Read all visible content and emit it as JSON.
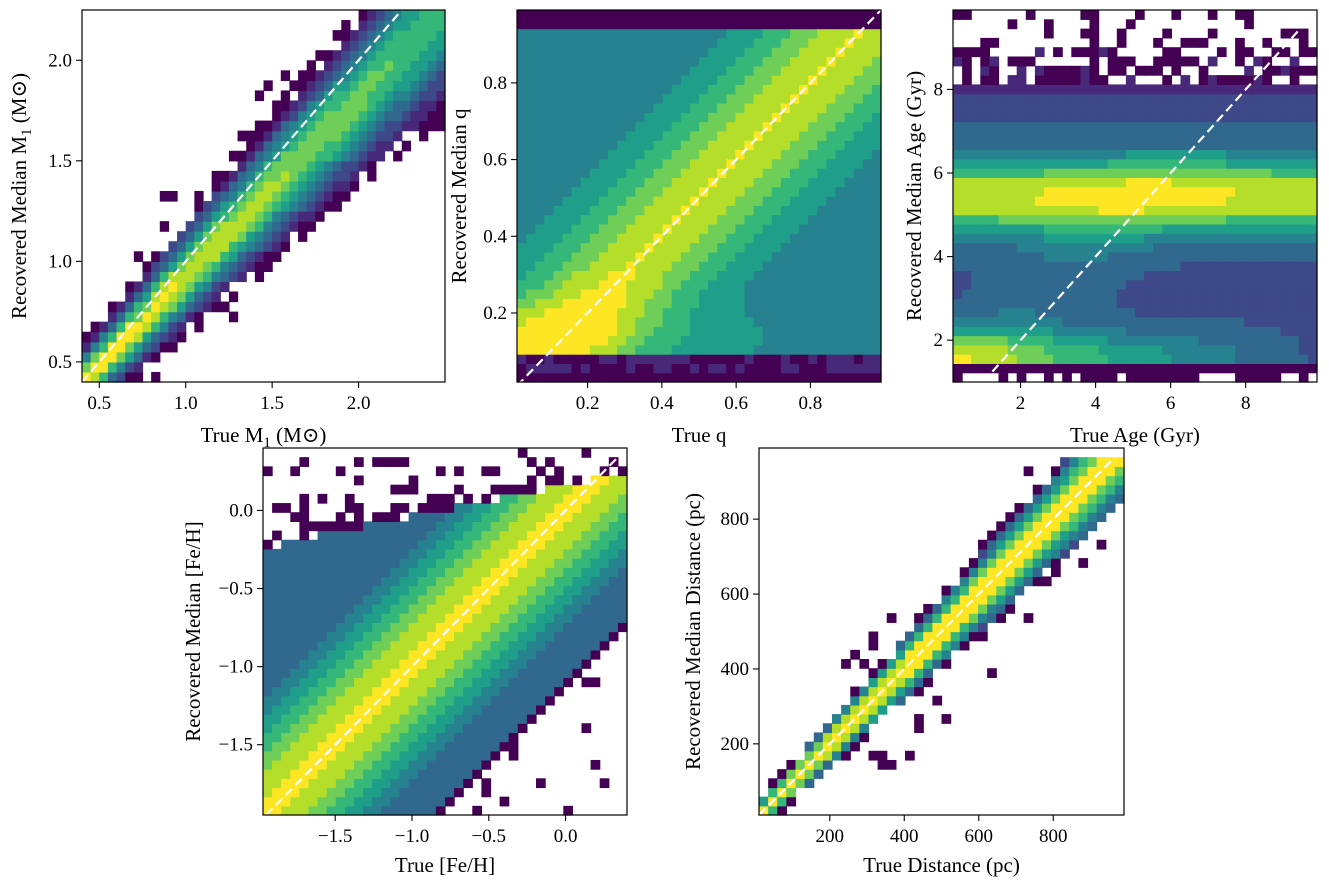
{
  "colors": {
    "colormap": [
      "#440154",
      "#482878",
      "#3e4989",
      "#31688e",
      "#26828e",
      "#1f9e89",
      "#35b779",
      "#6ece58",
      "#b5de2b",
      "#fde725"
    ],
    "diagonal": "#ffffff",
    "background": "#ffffff"
  },
  "chart_data": [
    {
      "type": "heatmap",
      "name": "m1",
      "xlabel": "True M",
      "xlabel_sub": "1",
      "xlabel_unit": " (M⊙)",
      "ylabel": "Recovered Median M",
      "ylabel_sub": "1",
      "ylabel_unit": " (M⊙)",
      "xlim": [
        0.4,
        2.5
      ],
      "ylim": [
        0.4,
        2.25
      ],
      "xticks": [
        0.5,
        1.0,
        1.5,
        2.0
      ],
      "yticks": [
        0.5,
        1.0,
        1.5,
        2.0
      ],
      "xtick_labels": [
        "0.5",
        "1.0",
        "1.5",
        "2.0"
      ],
      "ytick_labels": [
        "0.5",
        "1.0",
        "1.5",
        "2.0"
      ],
      "diagonal": [
        [
          0.4,
          0.4
        ],
        [
          2.25,
          2.25
        ]
      ],
      "nx": 42,
      "ny": 37
    },
    {
      "type": "heatmap",
      "name": "q",
      "xlabel": "True q",
      "ylabel": "Recovered Median q",
      "xlim": [
        0.01,
        0.99
      ],
      "ylim": [
        0.02,
        0.99
      ],
      "xticks": [
        0.2,
        0.4,
        0.6,
        0.8
      ],
      "yticks": [
        0.2,
        0.4,
        0.6,
        0.8
      ],
      "xtick_labels": [
        "0.2",
        "0.4",
        "0.6",
        "0.8"
      ],
      "ytick_labels": [
        "0.2",
        "0.4",
        "0.6",
        "0.8"
      ],
      "diagonal": [
        [
          0.01,
          0.01
        ],
        [
          0.99,
          0.99
        ]
      ],
      "nx": 40,
      "ny": 40
    },
    {
      "type": "heatmap",
      "name": "age",
      "xlabel": "True Age (Gyr)",
      "ylabel": "Recovered Median Age (Gyr)",
      "xlim": [
        0.2,
        9.9
      ],
      "ylim": [
        1.0,
        9.9
      ],
      "xticks": [
        2,
        4,
        6,
        8
      ],
      "yticks": [
        2,
        4,
        6,
        8
      ],
      "xtick_labels": [
        "2",
        "4",
        "6",
        "8"
      ],
      "ytick_labels": [
        "2",
        "4",
        "6",
        "8"
      ],
      "diagonal": [
        [
          1.0,
          1.0
        ],
        [
          9.9,
          9.9
        ]
      ],
      "nx": 40,
      "ny": 40
    },
    {
      "type": "heatmap",
      "name": "feh",
      "xlabel": "True [Fe/H]",
      "ylabel": "Recovered Median [Fe/H]",
      "xlim": [
        -1.97,
        0.4
      ],
      "ylim": [
        -1.95,
        0.4
      ],
      "xticks": [
        -1.5,
        -1.0,
        -0.5,
        0.0
      ],
      "yticks": [
        -1.5,
        -1.0,
        -0.5,
        0.0
      ],
      "xtick_labels": [
        "−1.5",
        "−1.0",
        "−0.5",
        "0.0"
      ],
      "ytick_labels": [
        "−1.5",
        "−1.0",
        "−0.5",
        "0.0"
      ],
      "diagonal": [
        [
          -1.95,
          -1.95
        ],
        [
          0.4,
          0.4
        ]
      ],
      "nx": 40,
      "ny": 40
    },
    {
      "type": "heatmap",
      "name": "dist",
      "xlabel": "True Distance (pc)",
      "ylabel": "Recovered Median Distance (pc)",
      "xlim": [
        10,
        990
      ],
      "ylim": [
        10,
        990
      ],
      "xticks": [
        200,
        400,
        600,
        800
      ],
      "yticks": [
        200,
        400,
        600,
        800
      ],
      "xtick_labels": [
        "200",
        "400",
        "600",
        "800"
      ],
      "ytick_labels": [
        "200",
        "400",
        "600",
        "800"
      ],
      "diagonal": [
        [
          10,
          10
        ],
        [
          990,
          990
        ]
      ],
      "nx": 40,
      "ny": 40
    }
  ]
}
